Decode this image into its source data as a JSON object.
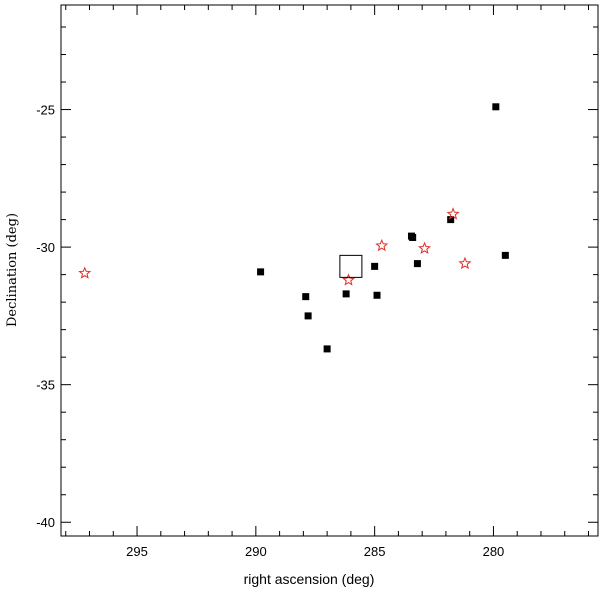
{
  "chart_data": {
    "type": "scatter",
    "title": "",
    "xlabel": "right ascension (deg)",
    "ylabel": "Declination (deg)",
    "xlim": [
      298.2,
      275.6
    ],
    "ylim": [
      -40.5,
      -21.2
    ],
    "x_reversed": true,
    "grid": false,
    "x_ticks": [
      295,
      290,
      285,
      280
    ],
    "x_tick_labels": [
      "295",
      "290",
      "285",
      "280"
    ],
    "y_ticks": [
      -40,
      -35,
      -30,
      -25
    ],
    "y_tick_labels": [
      "-40",
      "-35",
      "-30",
      "-25"
    ],
    "series": [
      {
        "marker": "filled-square",
        "color": "#000000",
        "points": [
          {
            "x": 279.9,
            "y": -24.9
          },
          {
            "x": 289.8,
            "y": -30.9
          },
          {
            "x": 287.9,
            "y": -31.8
          },
          {
            "x": 287.8,
            "y": -32.5
          },
          {
            "x": 287.0,
            "y": -33.7
          },
          {
            "x": 286.2,
            "y": -31.7
          },
          {
            "x": 285.0,
            "y": -30.7
          },
          {
            "x": 284.9,
            "y": -31.75
          },
          {
            "x": 283.45,
            "y": -29.6
          },
          {
            "x": 283.4,
            "y": -29.65
          },
          {
            "x": 283.2,
            "y": -30.6
          },
          {
            "x": 281.8,
            "y": -29.0
          },
          {
            "x": 279.5,
            "y": -30.3
          }
        ]
      },
      {
        "marker": "open-star",
        "color": "#e0302a",
        "points": [
          {
            "x": 297.2,
            "y": -30.95
          },
          {
            "x": 286.1,
            "y": -31.2
          },
          {
            "x": 284.7,
            "y": -29.95
          },
          {
            "x": 282.9,
            "y": -30.05
          },
          {
            "x": 281.7,
            "y": -28.8
          },
          {
            "x": 281.2,
            "y": -30.6
          }
        ]
      },
      {
        "marker": "open-square",
        "color": "#000000",
        "points": [
          {
            "x": 286.0,
            "y": -30.7
          }
        ]
      }
    ]
  }
}
